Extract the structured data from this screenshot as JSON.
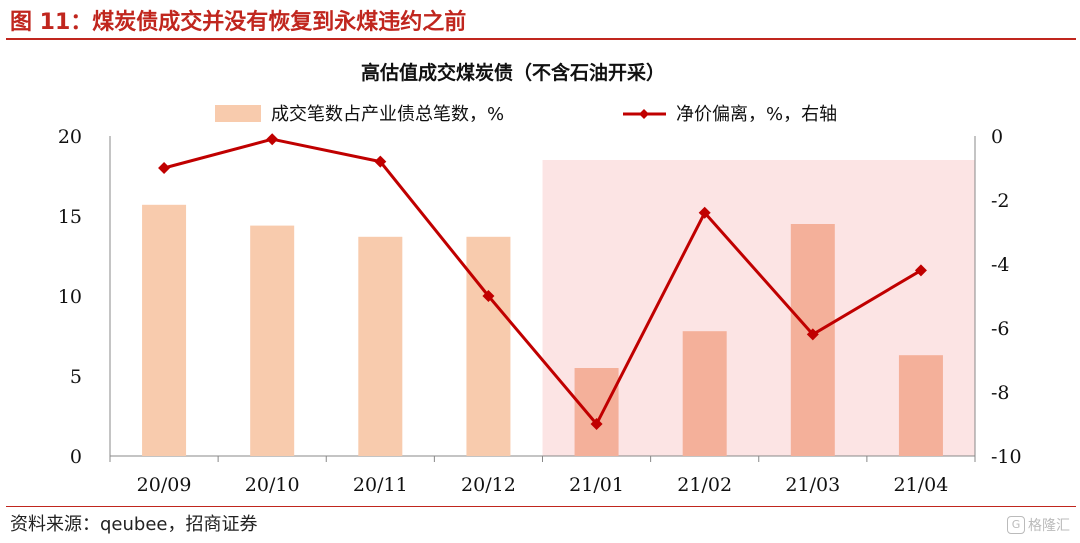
{
  "header": {
    "figure_title": "图 11：煤炭债成交并没有恢复到永煤违约之前"
  },
  "chart_data": {
    "type": "bar+line",
    "title": "高估值成交煤炭债（不含石油开采）",
    "categories": [
      "20/09",
      "20/10",
      "20/11",
      "20/12",
      "21/01",
      "21/02",
      "21/03",
      "21/04"
    ],
    "series": [
      {
        "name": "成交笔数占产业债总笔数，%",
        "type": "bar",
        "axis": "left",
        "values": [
          15.7,
          14.4,
          13.7,
          13.7,
          5.5,
          7.8,
          14.5,
          6.3
        ]
      },
      {
        "name": "净价偏离，%，右轴",
        "type": "line",
        "axis": "right",
        "values": [
          -1.0,
          -0.1,
          -0.8,
          -5.0,
          -9.0,
          -2.4,
          -6.2,
          -4.2
        ]
      }
    ],
    "left_axis": {
      "ylim": [
        0,
        20
      ],
      "ticks": [
        "0",
        "5",
        "10",
        "15",
        "20"
      ]
    },
    "right_axis": {
      "ylim": [
        -10,
        0
      ],
      "ticks": [
        "0",
        "-2",
        "-4",
        "-6",
        "-8",
        "-10"
      ]
    },
    "highlight_range": [
      "21/01",
      "21/04"
    ],
    "legend_position": "top",
    "grid": false,
    "colors": {
      "bar_light": "#F8CBAD",
      "bar_in_highlight": "#F4B09A",
      "highlight_fill": "#FCE4E4",
      "line": "#C00000",
      "accent": "#C0261E"
    }
  },
  "footer": {
    "source": "资料来源：qeubee，招商证券",
    "watermark": "格隆汇",
    "watermark_icon": "G"
  }
}
